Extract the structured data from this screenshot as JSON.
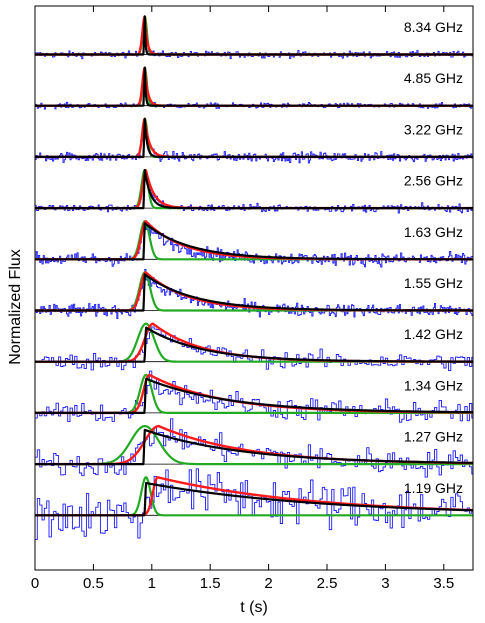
{
  "chart_data": {
    "type": "line",
    "title": "",
    "xlabel": "t (s)",
    "ylabel": "Normalized Flux",
    "xlim": [
      0,
      3.75
    ],
    "x_ticks": [
      0,
      0.5,
      1,
      1.5,
      2,
      2.5,
      3,
      3.5
    ],
    "x_tick_labels": [
      "0",
      "0.5",
      "1",
      "1.5",
      "2",
      "2.5",
      "3",
      "3.5"
    ],
    "grid": false,
    "legend": "none",
    "colors": {
      "data": "#1a1aff",
      "red_model": "#ff1a1a",
      "green_model": "#22aa22",
      "black_model": "#000000"
    },
    "panels": [
      {
        "label": "8.34 GHz",
        "bin_s": 0.01,
        "noise": 0.06,
        "peak_t": 0.94,
        "green_sigma": 0.018,
        "red_tau": 0.02,
        "black_tau": 0.006,
        "red_shift": 0.0,
        "black_amp": 1.0
      },
      {
        "label": "4.85 GHz",
        "bin_s": 0.01,
        "noise": 0.05,
        "peak_t": 0.94,
        "green_sigma": 0.018,
        "red_tau": 0.025,
        "black_tau": 0.008,
        "red_shift": 0.0,
        "black_amp": 1.0
      },
      {
        "label": "3.22 GHz",
        "bin_s": 0.01,
        "noise": 0.09,
        "peak_t": 0.94,
        "green_sigma": 0.022,
        "red_tau": 0.04,
        "black_tau": 0.02,
        "red_shift": 0.0,
        "black_amp": 1.0
      },
      {
        "label": "2.56 GHz",
        "bin_s": 0.01,
        "noise": 0.07,
        "peak_t": 0.94,
        "green_sigma": 0.028,
        "red_tau": 0.07,
        "black_tau": 0.05,
        "red_shift": 0.01,
        "black_amp": 1.0
      },
      {
        "label": "1.63 GHz",
        "bin_s": 0.01,
        "noise": 0.12,
        "peak_t": 0.94,
        "green_sigma": 0.04,
        "red_tau": 0.32,
        "black_tau": 0.38,
        "red_shift": 0.01,
        "black_amp": 0.95
      },
      {
        "label": "1.55 GHz",
        "bin_s": 0.01,
        "noise": 0.12,
        "peak_t": 0.94,
        "green_sigma": 0.045,
        "red_tau": 0.36,
        "black_tau": 0.42,
        "red_shift": 0.01,
        "black_amp": 0.95
      },
      {
        "label": "1.42 GHz",
        "bin_s": 0.02,
        "noise": 0.16,
        "peak_t": 0.95,
        "green_sigma": 0.07,
        "red_tau": 0.42,
        "black_tau": 0.48,
        "red_shift": 0.06,
        "black_amp": 0.9
      },
      {
        "label": "1.34 GHz",
        "bin_s": 0.02,
        "noise": 0.22,
        "peak_t": 0.95,
        "green_sigma": 0.05,
        "red_tau": 0.62,
        "black_tau": 0.72,
        "red_shift": 0.03,
        "black_amp": 0.9
      },
      {
        "label": "1.27 GHz",
        "bin_s": 0.02,
        "noise": 0.25,
        "peak_t": 0.94,
        "green_sigma": 0.12,
        "red_tau": 0.75,
        "black_tau": 0.85,
        "red_shift": 0.12,
        "black_amp": 0.9
      },
      {
        "label": "1.19 GHz",
        "bin_s": 0.02,
        "noise": 0.45,
        "peak_t": 0.95,
        "green_sigma": 0.04,
        "red_tau": 1.35,
        "black_tau": 1.5,
        "red_shift": 0.1,
        "black_amp": 0.85
      }
    ]
  }
}
